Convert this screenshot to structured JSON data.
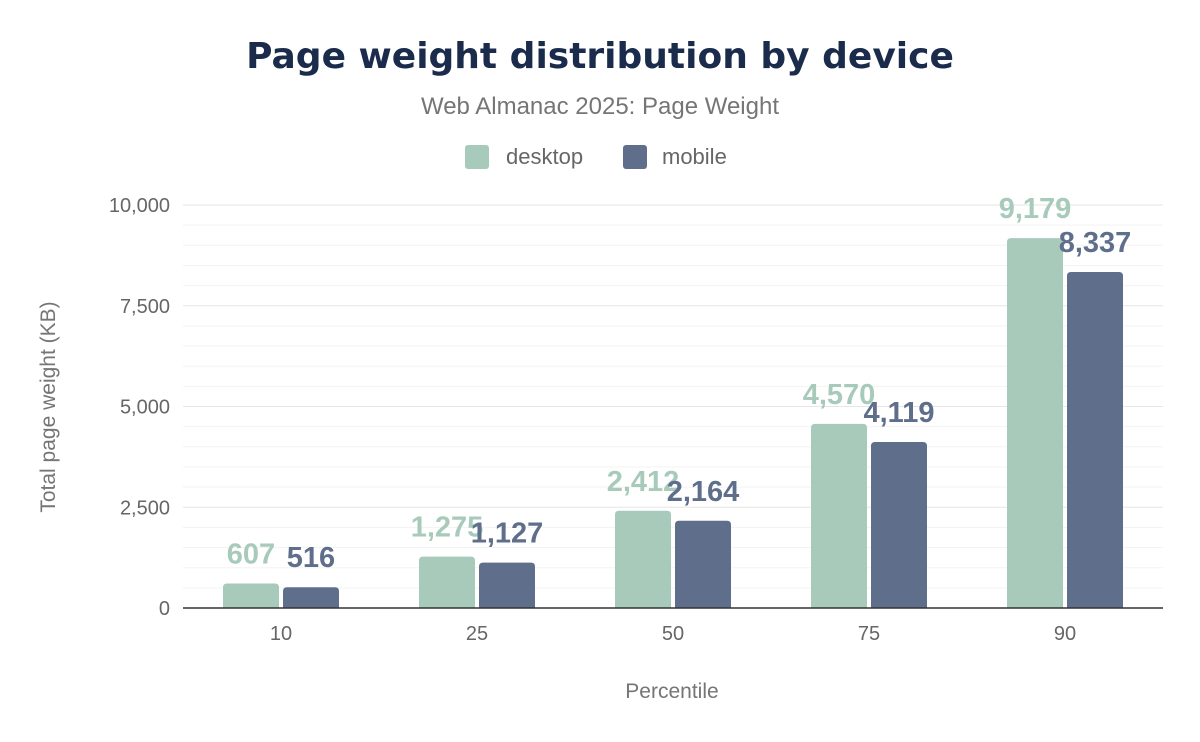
{
  "chart_data": {
    "type": "bar",
    "title": "Page weight distribution by device",
    "subtitle": "Web Almanac 2025: Page Weight",
    "xlabel": "Percentile",
    "ylabel": "Total page weight (KB)",
    "categories": [
      "10",
      "25",
      "50",
      "75",
      "90"
    ],
    "series": [
      {
        "name": "desktop",
        "color": "#a8cabb",
        "values": [
          607,
          1275,
          2412,
          4570,
          9179
        ],
        "labels": [
          "607",
          "1,275",
          "2,412",
          "4,570",
          "9,179"
        ]
      },
      {
        "name": "mobile",
        "color": "#5f6f8b",
        "values": [
          516,
          1127,
          2164,
          4119,
          8337
        ],
        "labels": [
          "516",
          "1,127",
          "2,164",
          "4,119",
          "8,337"
        ]
      }
    ],
    "ylim": [
      0,
      10000
    ],
    "yticks": [
      0,
      2500,
      5000,
      7500,
      10000
    ],
    "ytick_labels": [
      "0",
      "2,500",
      "5,000",
      "7,500",
      "10,000"
    ],
    "grid": true,
    "legend_position": "top"
  }
}
